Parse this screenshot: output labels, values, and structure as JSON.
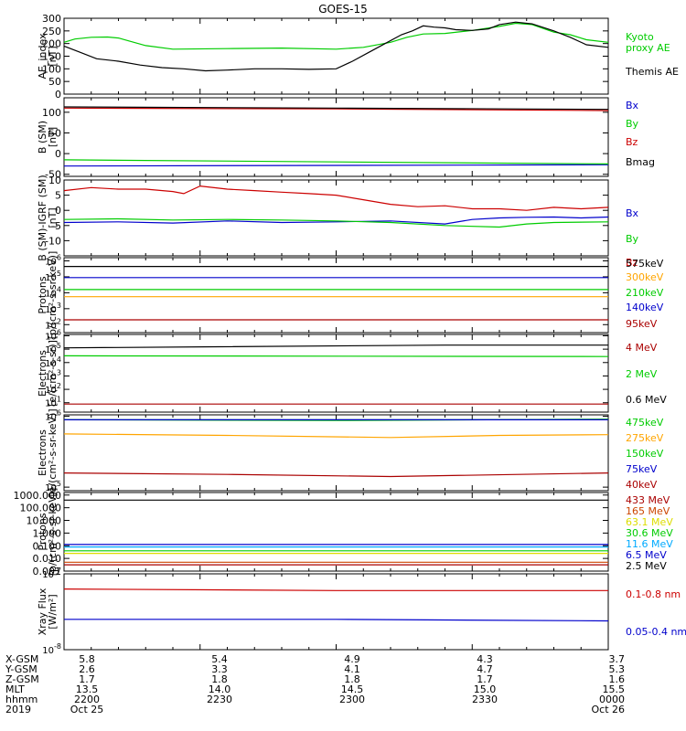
{
  "title": "GOES-15",
  "chart_data": [
    {
      "type": "line",
      "ylabel": "AE_index\n[nT]",
      "yscale": "linear",
      "ylim": [
        0,
        300
      ],
      "yticks": [
        0,
        50,
        100,
        150,
        200,
        250,
        300
      ],
      "series": [
        {
          "name": "Kyoto\nproxy AE",
          "color": "#00cc00",
          "x": [
            0,
            0.02,
            0.05,
            0.08,
            0.1,
            0.12,
            0.15,
            0.2,
            0.3,
            0.4,
            0.5,
            0.55,
            0.6,
            0.63,
            0.66,
            0.7,
            0.75,
            0.8,
            0.83,
            0.86,
            0.88,
            0.9,
            0.93,
            0.96,
            1.0
          ],
          "y": [
            205,
            218,
            225,
            226,
            222,
            210,
            192,
            178,
            180,
            182,
            178,
            185,
            205,
            225,
            238,
            240,
            252,
            268,
            280,
            275,
            260,
            245,
            235,
            215,
            205
          ]
        },
        {
          "name": "Themis AE",
          "color": "#000000",
          "x": [
            0,
            0.03,
            0.06,
            0.1,
            0.14,
            0.18,
            0.22,
            0.26,
            0.3,
            0.35,
            0.4,
            0.45,
            0.5,
            0.53,
            0.56,
            0.59,
            0.62,
            0.64,
            0.66,
            0.68,
            0.7,
            0.72,
            0.75,
            0.78,
            0.8,
            0.83,
            0.86,
            0.9,
            0.93,
            0.96,
            1.0
          ],
          "y": [
            190,
            165,
            140,
            130,
            115,
            105,
            100,
            92,
            95,
            100,
            100,
            98,
            100,
            130,
            165,
            200,
            235,
            250,
            270,
            265,
            262,
            255,
            252,
            258,
            275,
            285,
            278,
            250,
            225,
            195,
            185
          ]
        }
      ]
    },
    {
      "type": "line",
      "ylabel": "B (SM)\n[nT]",
      "yscale": "linear",
      "ylim": [
        -55,
        135
      ],
      "yticks": [
        -50,
        0,
        50,
        100
      ],
      "series": [
        {
          "name": "Bx",
          "color": "#0000cc",
          "x": [
            0,
            1
          ],
          "y": [
            -30,
            -27
          ]
        },
        {
          "name": "By",
          "color": "#00cc00",
          "x": [
            0,
            0.5,
            1
          ],
          "y": [
            -15,
            -20,
            -25
          ]
        },
        {
          "name": "Bz",
          "color": "#cc0000",
          "x": [
            0,
            0.5,
            1
          ],
          "y": [
            110,
            108,
            104
          ]
        },
        {
          "name": "Bmag",
          "color": "#000000",
          "x": [
            0,
            0.5,
            1
          ],
          "y": [
            113,
            110,
            107
          ]
        }
      ]
    },
    {
      "type": "line",
      "ylabel": "B (SM)-IGRF (SM)\n[nT]",
      "yscale": "linear",
      "ylim": [
        -15,
        10
      ],
      "yticks": [
        -10,
        -5,
        0,
        5,
        10
      ],
      "series": [
        {
          "name": "Bx",
          "color": "#0000cc",
          "x": [
            0,
            0.1,
            0.2,
            0.3,
            0.4,
            0.5,
            0.6,
            0.7,
            0.75,
            0.8,
            0.85,
            0.9,
            0.95,
            1.0
          ],
          "y": [
            -4,
            -3.8,
            -4.2,
            -3.5,
            -4,
            -3.8,
            -3.5,
            -4.5,
            -3,
            -2.5,
            -2.3,
            -2.2,
            -2.5,
            -2.2
          ]
        },
        {
          "name": "By",
          "color": "#00cc00",
          "x": [
            0,
            0.1,
            0.2,
            0.3,
            0.4,
            0.5,
            0.6,
            0.7,
            0.8,
            0.85,
            0.9,
            1.0
          ],
          "y": [
            -3,
            -2.8,
            -3.2,
            -3,
            -3.2,
            -3.5,
            -4,
            -5,
            -5.5,
            -4.5,
            -4,
            -3.8
          ]
        },
        {
          "name": "Bz",
          "color": "#cc0000",
          "x": [
            0,
            0.05,
            0.1,
            0.15,
            0.2,
            0.22,
            0.25,
            0.3,
            0.35,
            0.4,
            0.45,
            0.5,
            0.55,
            0.6,
            0.65,
            0.7,
            0.75,
            0.8,
            0.85,
            0.9,
            0.95,
            1.0
          ],
          "y": [
            6.5,
            7.5,
            7,
            7,
            6.2,
            5.5,
            8,
            7,
            6.5,
            6,
            5.5,
            5,
            3.5,
            2,
            1.2,
            1.5,
            0.5,
            0.5,
            0,
            1,
            0.5,
            1
          ]
        }
      ]
    },
    {
      "type": "line",
      "ylabel": "Protons\n[p/(cm²-s-sr-keV)]",
      "yscale": "log",
      "ylim": [
        1.5,
        6.2
      ],
      "ytick_exponents": [
        2,
        3,
        4,
        5,
        6
      ],
      "series": [
        {
          "name": "575keV",
          "color": "#000000",
          "x": [
            0,
            1
          ],
          "y": [
            5.65,
            5.65
          ]
        },
        {
          "name": "300keV",
          "color": "#ffa500",
          "x": [
            0,
            1
          ],
          "y": [
            3.75,
            3.75
          ]
        },
        {
          "name": "210keV",
          "color": "#00cc00",
          "x": [
            0,
            1
          ],
          "y": [
            4.2,
            4.2
          ]
        },
        {
          "name": "140keV",
          "color": "#0000cc",
          "x": [
            0,
            1
          ],
          "y": [
            4.95,
            4.95
          ]
        },
        {
          "name": "95keV",
          "color": "#aa0000",
          "x": [
            0,
            1
          ],
          "y": [
            2.3,
            2.3
          ]
        }
      ]
    },
    {
      "type": "line",
      "ylabel": "Electrons\n[e/(cm²-s-sr)]",
      "yscale": "log",
      "ylim": [
        0.3,
        6.1
      ],
      "ytick_exponents": [
        1,
        2,
        3,
        4,
        5,
        6
      ],
      "series": [
        {
          "name": "4 MeV",
          "color": "#aa0000",
          "x": [
            0,
            1
          ],
          "y": [
            0.9,
            0.9
          ]
        },
        {
          "name": "2 MeV",
          "color": "#00cc00",
          "x": [
            0,
            1
          ],
          "y": [
            4.5,
            4.45
          ]
        },
        {
          "name": "0.6 MeV",
          "color": "#000000",
          "x": [
            0,
            0.7,
            1
          ],
          "y": [
            5.1,
            5.3,
            5.3
          ]
        }
      ]
    },
    {
      "type": "line",
      "ylabel": "Electrons\n[e/(cm²-s-sr-keV)]",
      "yscale": "log",
      "ylim": [
        4.95,
        6.02
      ],
      "ytick_exponents": [
        5,
        6
      ],
      "series": [
        {
          "name": "475keV",
          "color": "#00cc00",
          "x": [
            0,
            0.5,
            1
          ],
          "y": [
            5.95,
            5.94,
            5.96
          ]
        },
        {
          "name": "275keV",
          "color": "#ffa500",
          "x": [
            0,
            0.3,
            0.6,
            0.8,
            1
          ],
          "y": [
            5.75,
            5.73,
            5.7,
            5.73,
            5.74
          ]
        },
        {
          "name": "150keV",
          "color": "#00cc00",
          "x": [
            0,
            1
          ],
          "y": [
            5.95,
            5.95
          ]
        },
        {
          "name": "75keV",
          "color": "#0000cc",
          "x": [
            0,
            1
          ],
          "y": [
            5.95,
            5.95
          ]
        },
        {
          "name": "40keV",
          "color": "#aa0000",
          "x": [
            0,
            0.3,
            0.6,
            1
          ],
          "y": [
            5.2,
            5.18,
            5.15,
            5.2
          ]
        }
      ]
    },
    {
      "type": "line",
      "ylabel": "Protons\n[p/(cm²-s-sr-keV)]",
      "yscale": "log",
      "ylim": [
        -3,
        3.2
      ],
      "ytick_values": [
        "0.001",
        "0.010",
        "0.100",
        "1.000",
        "10.000",
        "100.000",
        "1000.000"
      ],
      "ytick_exponents": [
        -3,
        -2,
        -1,
        0,
        1,
        2,
        3
      ],
      "series": [
        {
          "name": "433 MeV",
          "color": "#aa0000",
          "x": [
            0,
            1
          ],
          "y": [
            -2.5,
            -2.5
          ]
        },
        {
          "name": "165 MeV",
          "color": "#cc4400",
          "x": [
            0,
            1
          ],
          "y": [
            -2.3,
            -2.3
          ]
        },
        {
          "name": "63.1 MeV",
          "color": "#dddd00",
          "x": [
            0,
            1
          ],
          "y": [
            -1.6,
            -1.6
          ]
        },
        {
          "name": "30.6 MeV",
          "color": "#00cc00",
          "x": [
            0,
            1
          ],
          "y": [
            -1.4,
            -1.4
          ]
        },
        {
          "name": "11.6 MeV",
          "color": "#00aaff",
          "x": [
            0,
            1
          ],
          "y": [
            -1.1,
            -1.1
          ]
        },
        {
          "name": "6.5 MeV",
          "color": "#0000cc",
          "x": [
            0,
            1
          ],
          "y": [
            -0.9,
            -0.9
          ]
        },
        {
          "name": "2.5 MeV",
          "color": "#000000",
          "x": [
            0,
            1
          ],
          "y": [
            2.6,
            2.6
          ]
        }
      ]
    },
    {
      "type": "line",
      "ylabel": "Xray Flux\n[W/m²]",
      "yscale": "log",
      "ylim": [
        -8,
        -7
      ],
      "ytick_exponents": [
        -8,
        -7
      ],
      "series": [
        {
          "name": "0.1-0.8 nm",
          "color": "#cc0000",
          "x": [
            0,
            0.5,
            1
          ],
          "y": [
            -7.2,
            -7.22,
            -7.22
          ]
        },
        {
          "name": "0.05-0.4 nm",
          "color": "#0000cc",
          "x": [
            0,
            0.5,
            1
          ],
          "y": [
            -7.6,
            -7.6,
            -7.62
          ]
        }
      ]
    }
  ],
  "xaxis": {
    "rows": [
      {
        "label": "X-GSM",
        "values": [
          "5.8",
          "5.4",
          "4.9",
          "4.3",
          "3.7"
        ]
      },
      {
        "label": "Y-GSM",
        "values": [
          "2.6",
          "3.3",
          "4.1",
          "4.7",
          "5.3"
        ]
      },
      {
        "label": "Z-GSM",
        "values": [
          "1.7",
          "1.8",
          "1.8",
          "1.7",
          "1.6"
        ]
      },
      {
        "label": "MLT",
        "values": [
          "13.5",
          "14.0",
          "14.5",
          "15.0",
          "15.5"
        ]
      },
      {
        "label": "hhmm",
        "values": [
          "2200",
          "2230",
          "2300",
          "2330",
          "0000"
        ]
      },
      {
        "label": "2019",
        "values": [
          "Oct 25",
          "",
          "",
          "",
          "Oct 26"
        ]
      }
    ]
  }
}
